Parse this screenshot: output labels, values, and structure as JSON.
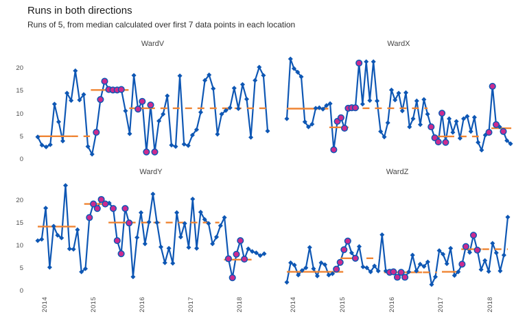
{
  "title": "Runs in both directions",
  "subtitle": "Runs of 5, from median calculated over first 7 data points in each location",
  "colors": {
    "line": "#0e57b4",
    "marker": "#0e57b4",
    "run_marker": "#cb2b8f",
    "median": "#ef8432",
    "title_text": "#1a1a1a",
    "axis_text": "#4d4d4d"
  },
  "axes": {
    "y_ticks": [
      "0",
      "5",
      "10",
      "15",
      "20"
    ],
    "x_ticks": [
      "2014",
      "2015",
      "2016",
      "2017",
      "2018"
    ]
  },
  "chart_data": [
    {
      "type": "line",
      "facet": "WardV",
      "xlabel": "",
      "ylabel": "",
      "ylim": [
        0,
        23.5
      ],
      "x_ticks": [
        "2014",
        "2015",
        "2016",
        "2017",
        "2018"
      ],
      "x_note": "approx. monthly points, Jan 2014 onward, values estimated from plot",
      "values": [
        5.0,
        3.2,
        2.8,
        3.3,
        12.2,
        8.3,
        4.1,
        14.6,
        13.0,
        19.5,
        13.1,
        14.3,
        2.9,
        1.2,
        6.0,
        13.2,
        17.2,
        15.4,
        15.3,
        15.3,
        15.4,
        10.7,
        5.7,
        18.5,
        11.1,
        12.8,
        1.7,
        12.0,
        1.7,
        8.5,
        10.0,
        14.0,
        3.2,
        2.9,
        18.4,
        3.4,
        3.1,
        5.4,
        6.6,
        10.4,
        17.4,
        18.6,
        15.6,
        5.6,
        10.0,
        10.8,
        11.4,
        15.7,
        11.2,
        16.5,
        13.3,
        4.9,
        17.4,
        20.3,
        18.5,
        6.3
      ],
      "run_indices": [
        14,
        15,
        16,
        17,
        18,
        19,
        20,
        24,
        25,
        26,
        27,
        28
      ],
      "medians": [
        {
          "level": 5.15,
          "solid": [
            0,
            8
          ],
          "dash": [
            8,
            12.5
          ]
        },
        {
          "level": 15.3,
          "solid": [
            12.7,
            20.1
          ],
          "dash": [
            20.1,
            21.9
          ]
        },
        {
          "level": 11.3,
          "solid": [
            21.9,
            26.4
          ],
          "dash": [
            26.4,
            55
          ]
        }
      ]
    },
    {
      "type": "line",
      "facet": "WardX",
      "xlabel": "",
      "ylabel": "",
      "ylim": [
        0,
        23.5
      ],
      "x_ticks": [
        "2014",
        "2015",
        "2016",
        "2017",
        "2018"
      ],
      "x_note": "approx. monthly points, Jan 2014 onward, values estimated from plot",
      "values": [
        9.0,
        22.1,
        20.0,
        19.2,
        18.2,
        8.3,
        7.2,
        7.8,
        11.3,
        11.4,
        11.1,
        11.9,
        12.3,
        2.2,
        8.4,
        9.2,
        6.9,
        11.3,
        11.4,
        11.4,
        21.2,
        12.2,
        21.5,
        13.0,
        21.5,
        12.9,
        6.2,
        5.0,
        8.1,
        15.3,
        13.1,
        14.6,
        10.7,
        14.7,
        7.2,
        9.0,
        12.9,
        7.7,
        13.2,
        10.0,
        7.2,
        4.8,
        3.9,
        10.2,
        3.8,
        9.0,
        6.0,
        8.4,
        4.7,
        9.0,
        9.5,
        6.2,
        9.3,
        3.8,
        2.1,
        5.4,
        6.0,
        16.1,
        7.7,
        7.2,
        6.2,
        4.2,
        3.5
      ],
      "run_indices": [
        13,
        14,
        15,
        16,
        17,
        18,
        19,
        20,
        40,
        41,
        42,
        43,
        44,
        56,
        57,
        58,
        60
      ],
      "medians": [
        {
          "level": 11.2,
          "solid": [
            0,
            11.5
          ]
        },
        {
          "level": 7.1,
          "solid": [
            11.8,
            17.1
          ]
        },
        {
          "level": 11.3,
          "solid": [
            17.5,
            20
          ],
          "dash": [
            21,
            39
          ]
        },
        {
          "level": 5.1,
          "solid": [
            40.7,
            46.4
          ],
          "dash": [
            47.9,
            53.2
          ]
        },
        {
          "level": 6.9,
          "solid": [
            56.7,
            62.2
          ]
        }
      ]
    },
    {
      "type": "line",
      "facet": "WardY",
      "xlabel": "",
      "ylabel": "",
      "ylim": [
        0,
        23.5
      ],
      "x_ticks": [
        "2014",
        "2015",
        "2016",
        "2017",
        "2018"
      ],
      "x_note": "approx. monthly points, Jan 2014 onward, values estimated from plot",
      "values": [
        11.2,
        11.5,
        18.4,
        5.3,
        14.4,
        12.4,
        11.8,
        23.4,
        9.4,
        9.3,
        13.6,
        4.3,
        5.0,
        16.3,
        19.3,
        18.3,
        20.3,
        19.3,
        19.5,
        18.3,
        11.2,
        8.3,
        18.3,
        15.1,
        3.2,
        11.9,
        17.4,
        10.5,
        15.3,
        21.5,
        15.2,
        9.8,
        6.3,
        9.5,
        6.2,
        17.4,
        12.0,
        15.0,
        9.7,
        20.4,
        9.5,
        17.5,
        15.9,
        15.0,
        10.5,
        12.0,
        14.5,
        16.3,
        7.2,
        3.0,
        8.2,
        11.2,
        7.1,
        9.4,
        8.8,
        8.5,
        7.9,
        8.3
      ],
      "run_indices": [
        13,
        14,
        15,
        16,
        17,
        19,
        20,
        21,
        22,
        23,
        48,
        49,
        50,
        51,
        52
      ],
      "medians": [
        {
          "level": 14.3,
          "solid": [
            0,
            7.8
          ],
          "dash": [
            7.8,
            10.3
          ]
        },
        {
          "level": 19.3,
          "solid": [
            11.7,
            17.2
          ]
        },
        {
          "level": 15.2,
          "solid": [
            17.8,
            22.9
          ],
          "dash": [
            22.9,
            45.7
          ]
        },
        {
          "level": 7.0,
          "solid": [
            46.9,
            52.1
          ],
          "dash": [
            52.1,
            54.8
          ]
        }
      ]
    },
    {
      "type": "line",
      "facet": "WardZ",
      "xlabel": "",
      "ylabel": "",
      "ylim": [
        0,
        23.5
      ],
      "x_ticks": [
        "2014",
        "2015",
        "2016",
        "2017",
        "2018"
      ],
      "x_note": "approx. monthly points, Jan 2014 onward, values estimated from plot",
      "values": [
        2.0,
        6.3,
        5.8,
        3.6,
        4.6,
        5.2,
        9.7,
        5.0,
        3.4,
        6.3,
        5.9,
        3.6,
        3.9,
        4.9,
        6.4,
        9.2,
        11.1,
        8.5,
        7.3,
        9.9,
        5.4,
        5.2,
        4.3,
        5.6,
        4.5,
        12.5,
        4.5,
        4.2,
        4.3,
        3.1,
        4.2,
        3.1,
        4.3,
        8.0,
        4.5,
        6.0,
        5.5,
        6.5,
        1.5,
        3.2,
        9.0,
        8.2,
        6.1,
        9.5,
        3.5,
        4.3,
        6.0,
        9.9,
        8.6,
        12.4,
        9.1,
        4.8,
        6.8,
        4.4,
        10.6,
        8.5,
        4.5,
        8.0,
        16.4
      ],
      "run_indices": [
        13,
        14,
        15,
        16,
        18,
        27,
        28,
        29,
        30,
        31,
        46,
        47,
        49,
        50
      ],
      "medians": [
        {
          "level": 4.3,
          "solid": [
            0,
            13.2
          ],
          "dash": [
            13.2,
            14.8
          ]
        },
        {
          "level": 7.3,
          "solid": [
            14.1,
            18.7
          ],
          "dash": [
            20.9,
            24.2
          ]
        },
        {
          "level": 4.2,
          "solid": [
            25.5,
            35.5
          ],
          "dash": [
            35.7,
            39.4
          ]
        },
        {
          "level": 4.3,
          "solid": [
            40.7,
            44.9
          ]
        },
        {
          "level": 9.3,
          "solid": [
            45.8,
            51.1
          ],
          "dash": [
            51.3,
            58
          ]
        }
      ]
    }
  ]
}
